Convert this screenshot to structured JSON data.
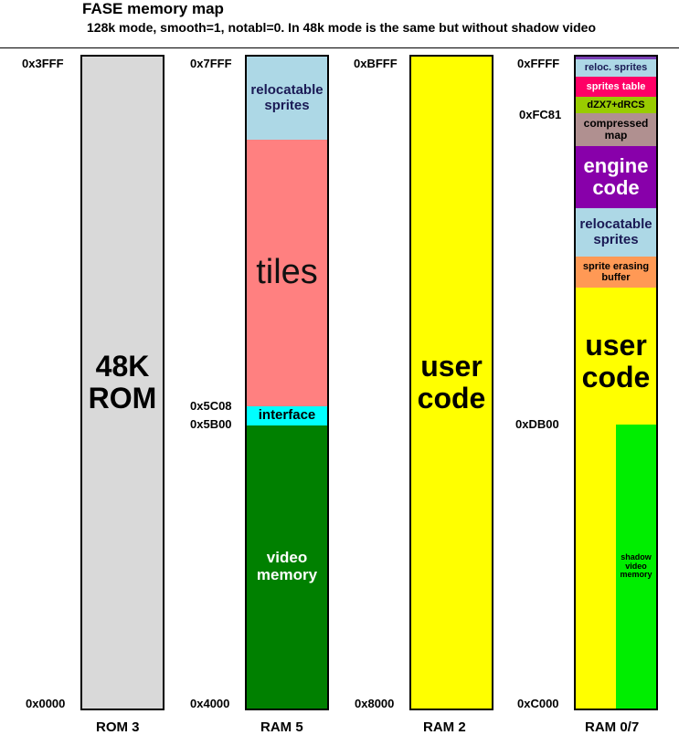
{
  "title": "FASE memory map",
  "subtitle": "128k mode, smooth=1, notabl=0. In 48k mode is the same but without shadow video",
  "banks": {
    "rom3": {
      "label": "ROM 3",
      "top_address": "0x3FFF",
      "bottom_address": "0x0000",
      "segments": [
        {
          "text": "48K ROM",
          "color": "#d9d9d9"
        }
      ]
    },
    "ram5": {
      "label": "RAM 5",
      "top_address": "0x7FFF",
      "bottom_address": "0x4000",
      "mid_address_upper": "0x5C08",
      "mid_address_lower": "0x5B00",
      "segments": [
        {
          "text": "relocatable sprites",
          "color": "#add8e6"
        },
        {
          "text": "tiles",
          "color": "#ff8080"
        },
        {
          "text": "interface",
          "color": "#00ffff"
        },
        {
          "text": "video memory",
          "color": "#008000"
        }
      ]
    },
    "ram2": {
      "label": "RAM 2",
      "top_address": "0xBFFF",
      "bottom_address": "0x8000",
      "segments": [
        {
          "text": "user code",
          "color": "#ffff00"
        }
      ]
    },
    "ram07": {
      "label": "RAM 0/7",
      "top_address": "0xFFFF",
      "bottom_address": "0xC000",
      "mid_address_fc81": "0xFC81",
      "mid_address_db00": "0xDB00",
      "segments": [
        {
          "text": "reloc. sprites",
          "color": "#add8e6"
        },
        {
          "text": "sprites table",
          "color": "#ff0066"
        },
        {
          "text": "dZX7+dRCS",
          "color": "#99cc00"
        },
        {
          "text": "compressed map",
          "color": "#b09090"
        },
        {
          "text": "engine code",
          "color": "#8800aa"
        },
        {
          "text": "relocatable sprites",
          "color": "#add8e6"
        },
        {
          "text": "sprite erasing buffer",
          "color": "#ff9955"
        },
        {
          "text": "user code",
          "color": "#ffff00"
        },
        {
          "text": "shadow video memory",
          "color": "#00ee00"
        }
      ]
    }
  }
}
